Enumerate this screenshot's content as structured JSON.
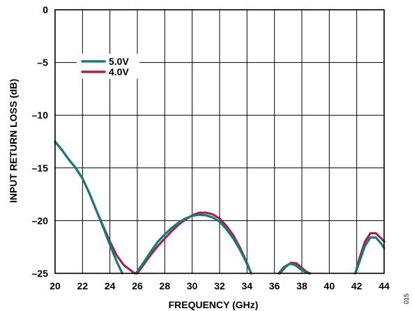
{
  "chart_data": {
    "type": "line",
    "title": "",
    "xlabel": "FREQUENCY (GHz)",
    "ylabel": "INPUT RETURN LOSS (dB)",
    "xlim": [
      20,
      44
    ],
    "ylim": [
      -25,
      0
    ],
    "xticks": [
      20,
      22,
      24,
      26,
      28,
      30,
      32,
      34,
      36,
      38,
      40,
      42,
      44
    ],
    "yticks": [
      0,
      -5,
      -10,
      -15,
      -20,
      -25
    ],
    "ytick_labels": [
      "0",
      "–5",
      "–10",
      "–15",
      "–20",
      "–25"
    ],
    "grid": true,
    "legend_position": "top-left",
    "series": [
      {
        "name": "4.0V",
        "color": "#a8224a",
        "points": [
          [
            [
              20.0,
              -12.5
            ],
            [
              20.5,
              -13.3
            ],
            [
              21.0,
              -14.2
            ],
            [
              21.5,
              -15.0
            ],
            [
              22.0,
              -16.0
            ],
            [
              22.5,
              -17.4
            ],
            [
              23.0,
              -19.0
            ],
            [
              23.5,
              -20.5
            ],
            [
              24.0,
              -22.0
            ],
            [
              24.5,
              -23.3
            ],
            [
              25.0,
              -24.2
            ],
            [
              25.5,
              -24.7
            ],
            [
              25.8,
              -25.0
            ]
          ],
          [
            [
              26.0,
              -25.0
            ],
            [
              26.5,
              -24.1
            ],
            [
              27.0,
              -23.2
            ],
            [
              27.5,
              -22.4
            ],
            [
              28.0,
              -21.7
            ],
            [
              28.5,
              -21.0
            ],
            [
              29.0,
              -20.4
            ],
            [
              29.5,
              -19.9
            ],
            [
              30.0,
              -19.5
            ],
            [
              30.5,
              -19.25
            ],
            [
              31.0,
              -19.25
            ],
            [
              31.5,
              -19.4
            ],
            [
              32.0,
              -19.8
            ],
            [
              32.5,
              -20.5
            ],
            [
              33.0,
              -21.4
            ],
            [
              33.5,
              -22.6
            ],
            [
              34.0,
              -24.0
            ],
            [
              34.3,
              -25.0
            ]
          ],
          [
            [
              36.4,
              -25.0
            ],
            [
              36.8,
              -24.4
            ],
            [
              37.2,
              -24.0
            ],
            [
              37.6,
              -24.05
            ],
            [
              38.0,
              -24.5
            ],
            [
              38.4,
              -24.9
            ],
            [
              38.6,
              -25.0
            ]
          ],
          [
            [
              41.9,
              -25.0
            ],
            [
              42.2,
              -23.6
            ],
            [
              42.6,
              -22.0
            ],
            [
              43.0,
              -21.2
            ],
            [
              43.4,
              -21.2
            ],
            [
              43.8,
              -21.7
            ],
            [
              44.0,
              -22.0
            ]
          ]
        ]
      },
      {
        "name": "5.0V",
        "color": "#1a7a78",
        "points": [
          [
            [
              20.0,
              -12.5
            ],
            [
              20.5,
              -13.3
            ],
            [
              21.0,
              -14.2
            ],
            [
              21.5,
              -15.0
            ],
            [
              22.0,
              -16.0
            ],
            [
              22.5,
              -17.4
            ],
            [
              23.0,
              -19.0
            ],
            [
              23.5,
              -20.6
            ],
            [
              24.0,
              -22.3
            ],
            [
              24.5,
              -23.9
            ],
            [
              24.9,
              -25.0
            ]
          ],
          [
            [
              25.9,
              -25.0
            ],
            [
              26.5,
              -23.9
            ],
            [
              27.0,
              -22.9
            ],
            [
              27.5,
              -22.0
            ],
            [
              28.0,
              -21.3
            ],
            [
              28.5,
              -20.7
            ],
            [
              29.0,
              -20.2
            ],
            [
              29.5,
              -19.8
            ],
            [
              30.0,
              -19.55
            ],
            [
              30.5,
              -19.45
            ],
            [
              31.0,
              -19.5
            ],
            [
              31.5,
              -19.7
            ],
            [
              32.0,
              -20.1
            ],
            [
              32.5,
              -20.8
            ],
            [
              33.0,
              -21.7
            ],
            [
              33.5,
              -22.8
            ],
            [
              34.0,
              -24.1
            ],
            [
              34.3,
              -25.0
            ]
          ],
          [
            [
              36.3,
              -25.0
            ],
            [
              36.7,
              -24.4
            ],
            [
              37.1,
              -24.1
            ],
            [
              37.5,
              -24.2
            ],
            [
              37.9,
              -24.6
            ],
            [
              38.3,
              -24.9
            ],
            [
              38.5,
              -25.0
            ]
          ],
          [
            [
              41.9,
              -25.0
            ],
            [
              42.2,
              -23.9
            ],
            [
              42.6,
              -22.4
            ],
            [
              43.0,
              -21.6
            ],
            [
              43.4,
              -21.6
            ],
            [
              43.8,
              -22.2
            ],
            [
              44.0,
              -22.6
            ]
          ]
        ]
      }
    ],
    "legend_order": [
      "5.0V",
      "4.0V"
    ]
  },
  "figure_number": "015"
}
